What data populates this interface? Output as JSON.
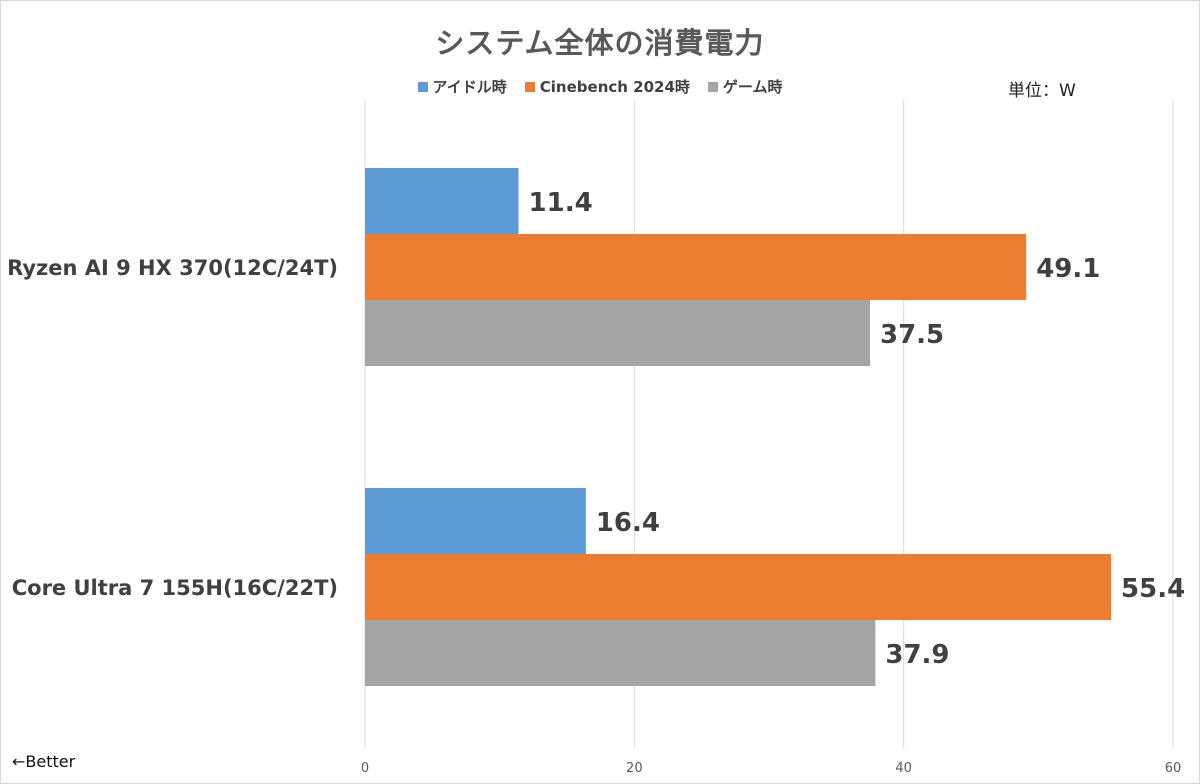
{
  "chart_data": {
    "type": "bar",
    "orientation": "horizontal",
    "title": "システム全体の消費電力",
    "unit_note": "単位：W",
    "footnote": "←Better",
    "categories": [
      "Ryzen AI 9 HX 370(12C/24T)",
      "Core Ultra 7 155H(16C/22T)"
    ],
    "series": [
      {
        "name": "アイドル時",
        "values": [
          11.4,
          16.4
        ],
        "color": "#5b9bd5"
      },
      {
        "name": "Cinebench 2024時",
        "values": [
          49.1,
          55.4
        ],
        "color": "#ed7d31"
      },
      {
        "name": "ゲーム時",
        "values": [
          37.5,
          37.9
        ],
        "color": "#a5a5a5"
      }
    ],
    "xlim": [
      0,
      60
    ],
    "xticks": [
      "0",
      "20",
      "40",
      "60"
    ],
    "grid": true,
    "legend_position": "top"
  }
}
